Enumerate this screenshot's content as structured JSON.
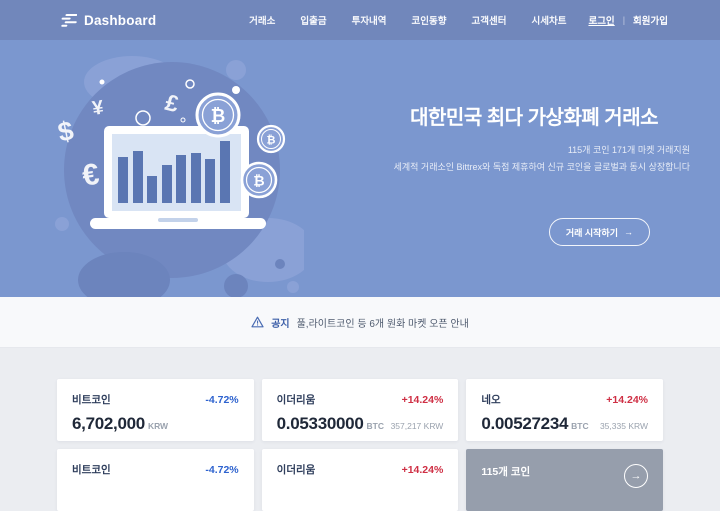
{
  "nav": {
    "logo": "Dashboard",
    "items": [
      "거래소",
      "입출금",
      "투자내역",
      "코인동향",
      "고객센터",
      "시세차트"
    ],
    "login": "로그인",
    "divider": "|",
    "signup": "회원가입"
  },
  "hero": {
    "title": "대한민국 최다 가상화폐 거래소",
    "subtitle_line1": "115개 코인 171개 마켓 거래지원",
    "subtitle_line2": "세계적 거래소인 Bittrex와 독점 제휴하여 신규 코인을 글로벌과 동시 상장합니다",
    "cta_label": "거래 시작하기",
    "cta_arrow": "→",
    "illustration": {
      "bars": [
        46,
        52,
        27,
        38,
        48,
        50,
        44,
        62
      ],
      "currency_symbols": [
        "$",
        "¥",
        "€",
        "£",
        "₿"
      ]
    }
  },
  "notice": {
    "icon": "warning-triangle-icon",
    "label": "공지",
    "text": "풀,라이트코인 등 6개 원화 마켓 오픈 안내"
  },
  "tickers_row1": [
    {
      "name": "비트코인",
      "change": "-4.72%",
      "trend": "down",
      "price": "6,702,000",
      "unit": "KRW",
      "converted": ""
    },
    {
      "name": "이더리움",
      "change": "+14.24%",
      "trend": "up",
      "price": "0.05330000",
      "unit": "BTC",
      "converted": "357,217 KRW"
    },
    {
      "name": "네오",
      "change": "+14.24%",
      "trend": "up",
      "price": "0.00527234",
      "unit": "BTC",
      "converted": "35,335 KRW"
    }
  ],
  "tickers_row2": [
    {
      "name": "비트코인",
      "change": "-4.72%",
      "trend": "down"
    },
    {
      "name": "이더리움",
      "change": "+14.24%",
      "trend": "up"
    }
  ],
  "promo_card": {
    "title": "115개 코인",
    "arrow": "→"
  },
  "colors": {
    "navbar": "#7187bb",
    "hero": "#7b97cf",
    "positive": "#cf2f44",
    "negative": "#2e63cf",
    "notice_accent": "#3c5fa8",
    "promo_bg": "#969eac"
  }
}
